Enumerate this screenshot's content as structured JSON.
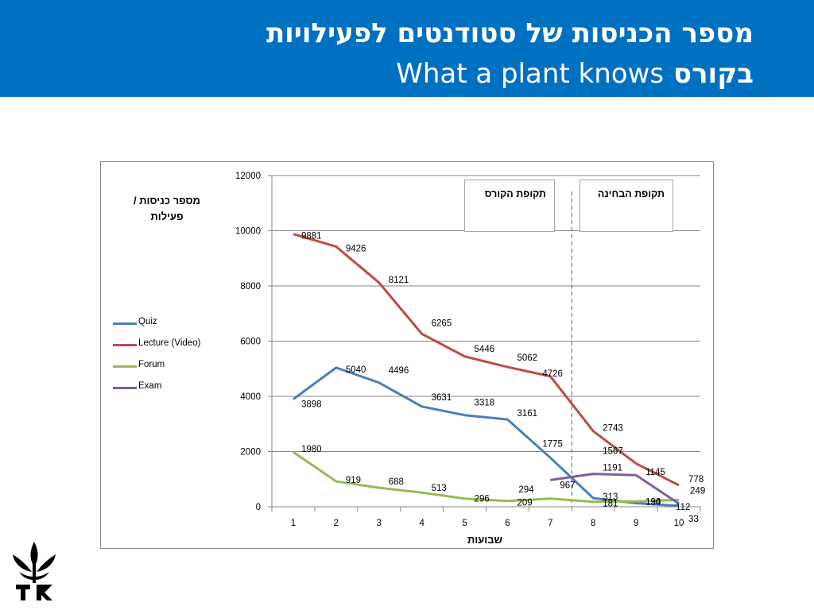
{
  "header": {
    "title_line1": "מספר הכניסות של סטודנטים לפעילויות",
    "title_line2_latin": "What a plant knows",
    "title_line2_hebrew": "בקורס"
  },
  "colors": {
    "header_bg": "#0070c0",
    "quiz": "#4a7ebb",
    "lecture": "#be4b48",
    "forum": "#98b954",
    "exam": "#7d60a0",
    "divider": "#4a7ebb"
  },
  "icons": {
    "logo": "tel-aviv-university-logo"
  },
  "chart_data": {
    "type": "line",
    "ylabel": "מספר כניסות / פעילות",
    "xlabel": "שבועות",
    "ylim": [
      0,
      12000
    ],
    "yticks": [
      0,
      2000,
      4000,
      6000,
      8000,
      10000,
      12000
    ],
    "categories": [
      "1",
      "2",
      "3",
      "4",
      "5",
      "6",
      "7",
      "8",
      "9",
      "10"
    ],
    "legend_position": "left",
    "grid": true,
    "series": [
      {
        "name": "Quiz",
        "color": "#4a7ebb",
        "x": [
          1,
          2,
          3,
          4,
          5,
          6,
          7,
          8,
          9,
          10
        ],
        "values": [
          3898,
          5040,
          4496,
          3631,
          3318,
          3161,
          1775,
          313,
          130,
          33
        ],
        "labels": [
          "3898",
          "5040",
          "4496",
          "3631",
          "3318",
          "3161",
          "1775",
          "313",
          "130",
          "33"
        ]
      },
      {
        "name": "Lecture (Video)",
        "color": "#be4b48",
        "x": [
          1,
          2,
          3,
          4,
          5,
          6,
          7,
          8,
          9,
          10
        ],
        "values": [
          9881,
          9426,
          8121,
          6265,
          5446,
          5062,
          4726,
          2743,
          1567,
          778
        ],
        "labels": [
          "9881",
          "9426",
          "8121",
          "6265",
          "5446",
          "5062",
          "4726",
          "2743",
          "1567",
          "778"
        ]
      },
      {
        "name": "Forum",
        "color": "#98b954",
        "x": [
          1,
          2,
          3,
          4,
          5,
          6,
          7,
          8,
          9,
          10
        ],
        "values": [
          1980,
          919,
          688,
          513,
          296,
          209,
          294,
          181,
          194,
          249
        ],
        "labels": [
          "1980",
          "919",
          "688",
          "513",
          "296",
          "209",
          "294",
          "181",
          "194",
          "249"
        ]
      },
      {
        "name": "Exam",
        "color": "#7d60a0",
        "x": [
          7,
          8,
          9,
          10
        ],
        "values": [
          967,
          1191,
          1145,
          112
        ],
        "labels": [
          "967",
          "1191",
          "1145",
          "112"
        ]
      }
    ],
    "divider_after_x": 7.5,
    "annotations": [
      {
        "text": "תקופת הקורס"
      },
      {
        "text": "תקופת הבחינה"
      }
    ]
  }
}
